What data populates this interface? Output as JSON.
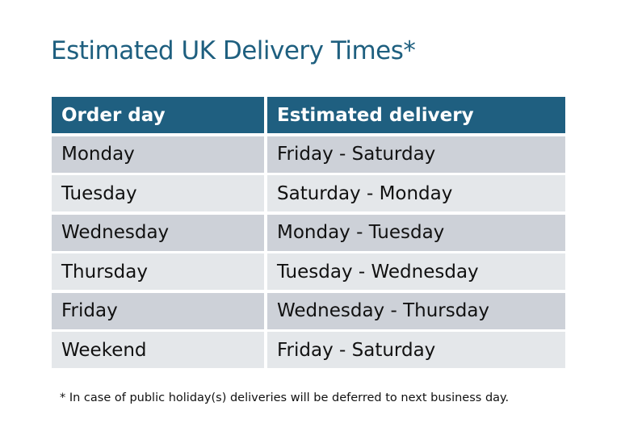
{
  "title": "Estimated UK Delivery Times*",
  "table": {
    "headers": [
      "Order day",
      "Estimated delivery"
    ],
    "rows": [
      [
        "Monday",
        "Friday - Saturday"
      ],
      [
        "Tuesday",
        "Saturday - Monday"
      ],
      [
        "Wednesday",
        "Monday - Tuesday"
      ],
      [
        "Thursday",
        "Tuesday - Wednesday"
      ],
      [
        "Friday",
        "Wednesday - Thursday"
      ],
      [
        "Weekend",
        "Friday - Saturday"
      ]
    ]
  },
  "footnote": "* In case of public holiday(s) deliveries will be deferred to next business day.",
  "colors": {
    "header": "#1f5f80",
    "row_odd": "#cdd1d8",
    "row_even": "#e4e7ea",
    "title": "#1e5f7f"
  }
}
